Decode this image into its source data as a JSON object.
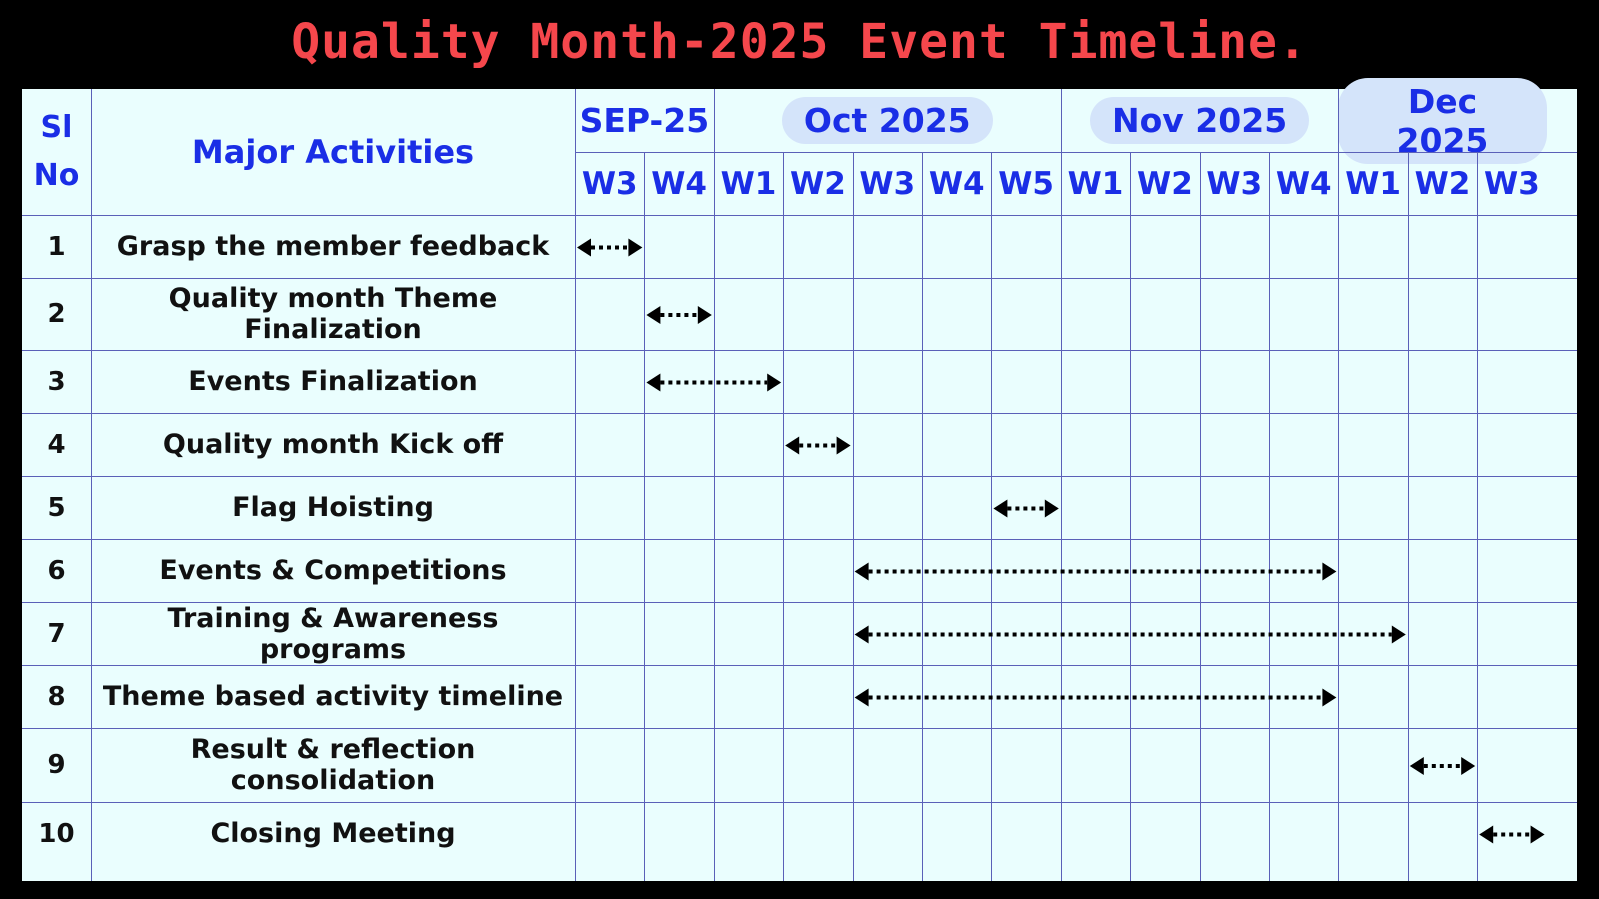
{
  "title": "Quality Month-2025 Event Timeline.",
  "header": {
    "sl_no": "Sl\nNo",
    "activities": "Major Activities",
    "months": [
      {
        "label": "SEP-25",
        "pill": false,
        "weeks": [
          "W3",
          "W4"
        ]
      },
      {
        "label": "Oct 2025",
        "pill": true,
        "weeks": [
          "W1",
          "W2",
          "W3",
          "W4",
          "W5"
        ]
      },
      {
        "label": "Nov 2025",
        "pill": true,
        "weeks": [
          "W1",
          "W2",
          "W3",
          "W4"
        ]
      },
      {
        "label": "Dec 2025",
        "pill": true,
        "weeks": [
          "W1",
          "W2",
          "W3"
        ]
      }
    ]
  },
  "rows": [
    {
      "no": "1",
      "activity": "Grasp the member feedback",
      "start_week": 0,
      "end_week": 1
    },
    {
      "no": "2",
      "activity": "Quality month Theme Finalization",
      "start_week": 1,
      "end_week": 2
    },
    {
      "no": "3",
      "activity": "Events Finalization",
      "start_week": 1,
      "end_week": 3
    },
    {
      "no": "4",
      "activity": "Quality month Kick off",
      "start_week": 3,
      "end_week": 4
    },
    {
      "no": "5",
      "activity": "Flag Hoisting",
      "start_week": 6,
      "end_week": 7
    },
    {
      "no": "6",
      "activity": "Events & Competitions",
      "start_week": 4,
      "end_week": 11
    },
    {
      "no": "7",
      "activity": "Training & Awareness programs",
      "start_week": 4,
      "end_week": 12
    },
    {
      "no": "8",
      "activity": "Theme based activity timeline",
      "start_week": 4,
      "end_week": 11
    },
    {
      "no": "9",
      "activity": "Result & reflection consolidation",
      "start_week": 12,
      "end_week": 13
    },
    {
      "no": "10",
      "activity": "Closing Meeting",
      "start_week": 13,
      "end_week": 14
    }
  ],
  "colors": {
    "title": "#f5474c",
    "header_text": "#1a2ee6",
    "grid_bg": "#eafefe",
    "grid_line": "#5a60b8",
    "pill": "#d4e4fa",
    "arrow": "#000000"
  }
}
